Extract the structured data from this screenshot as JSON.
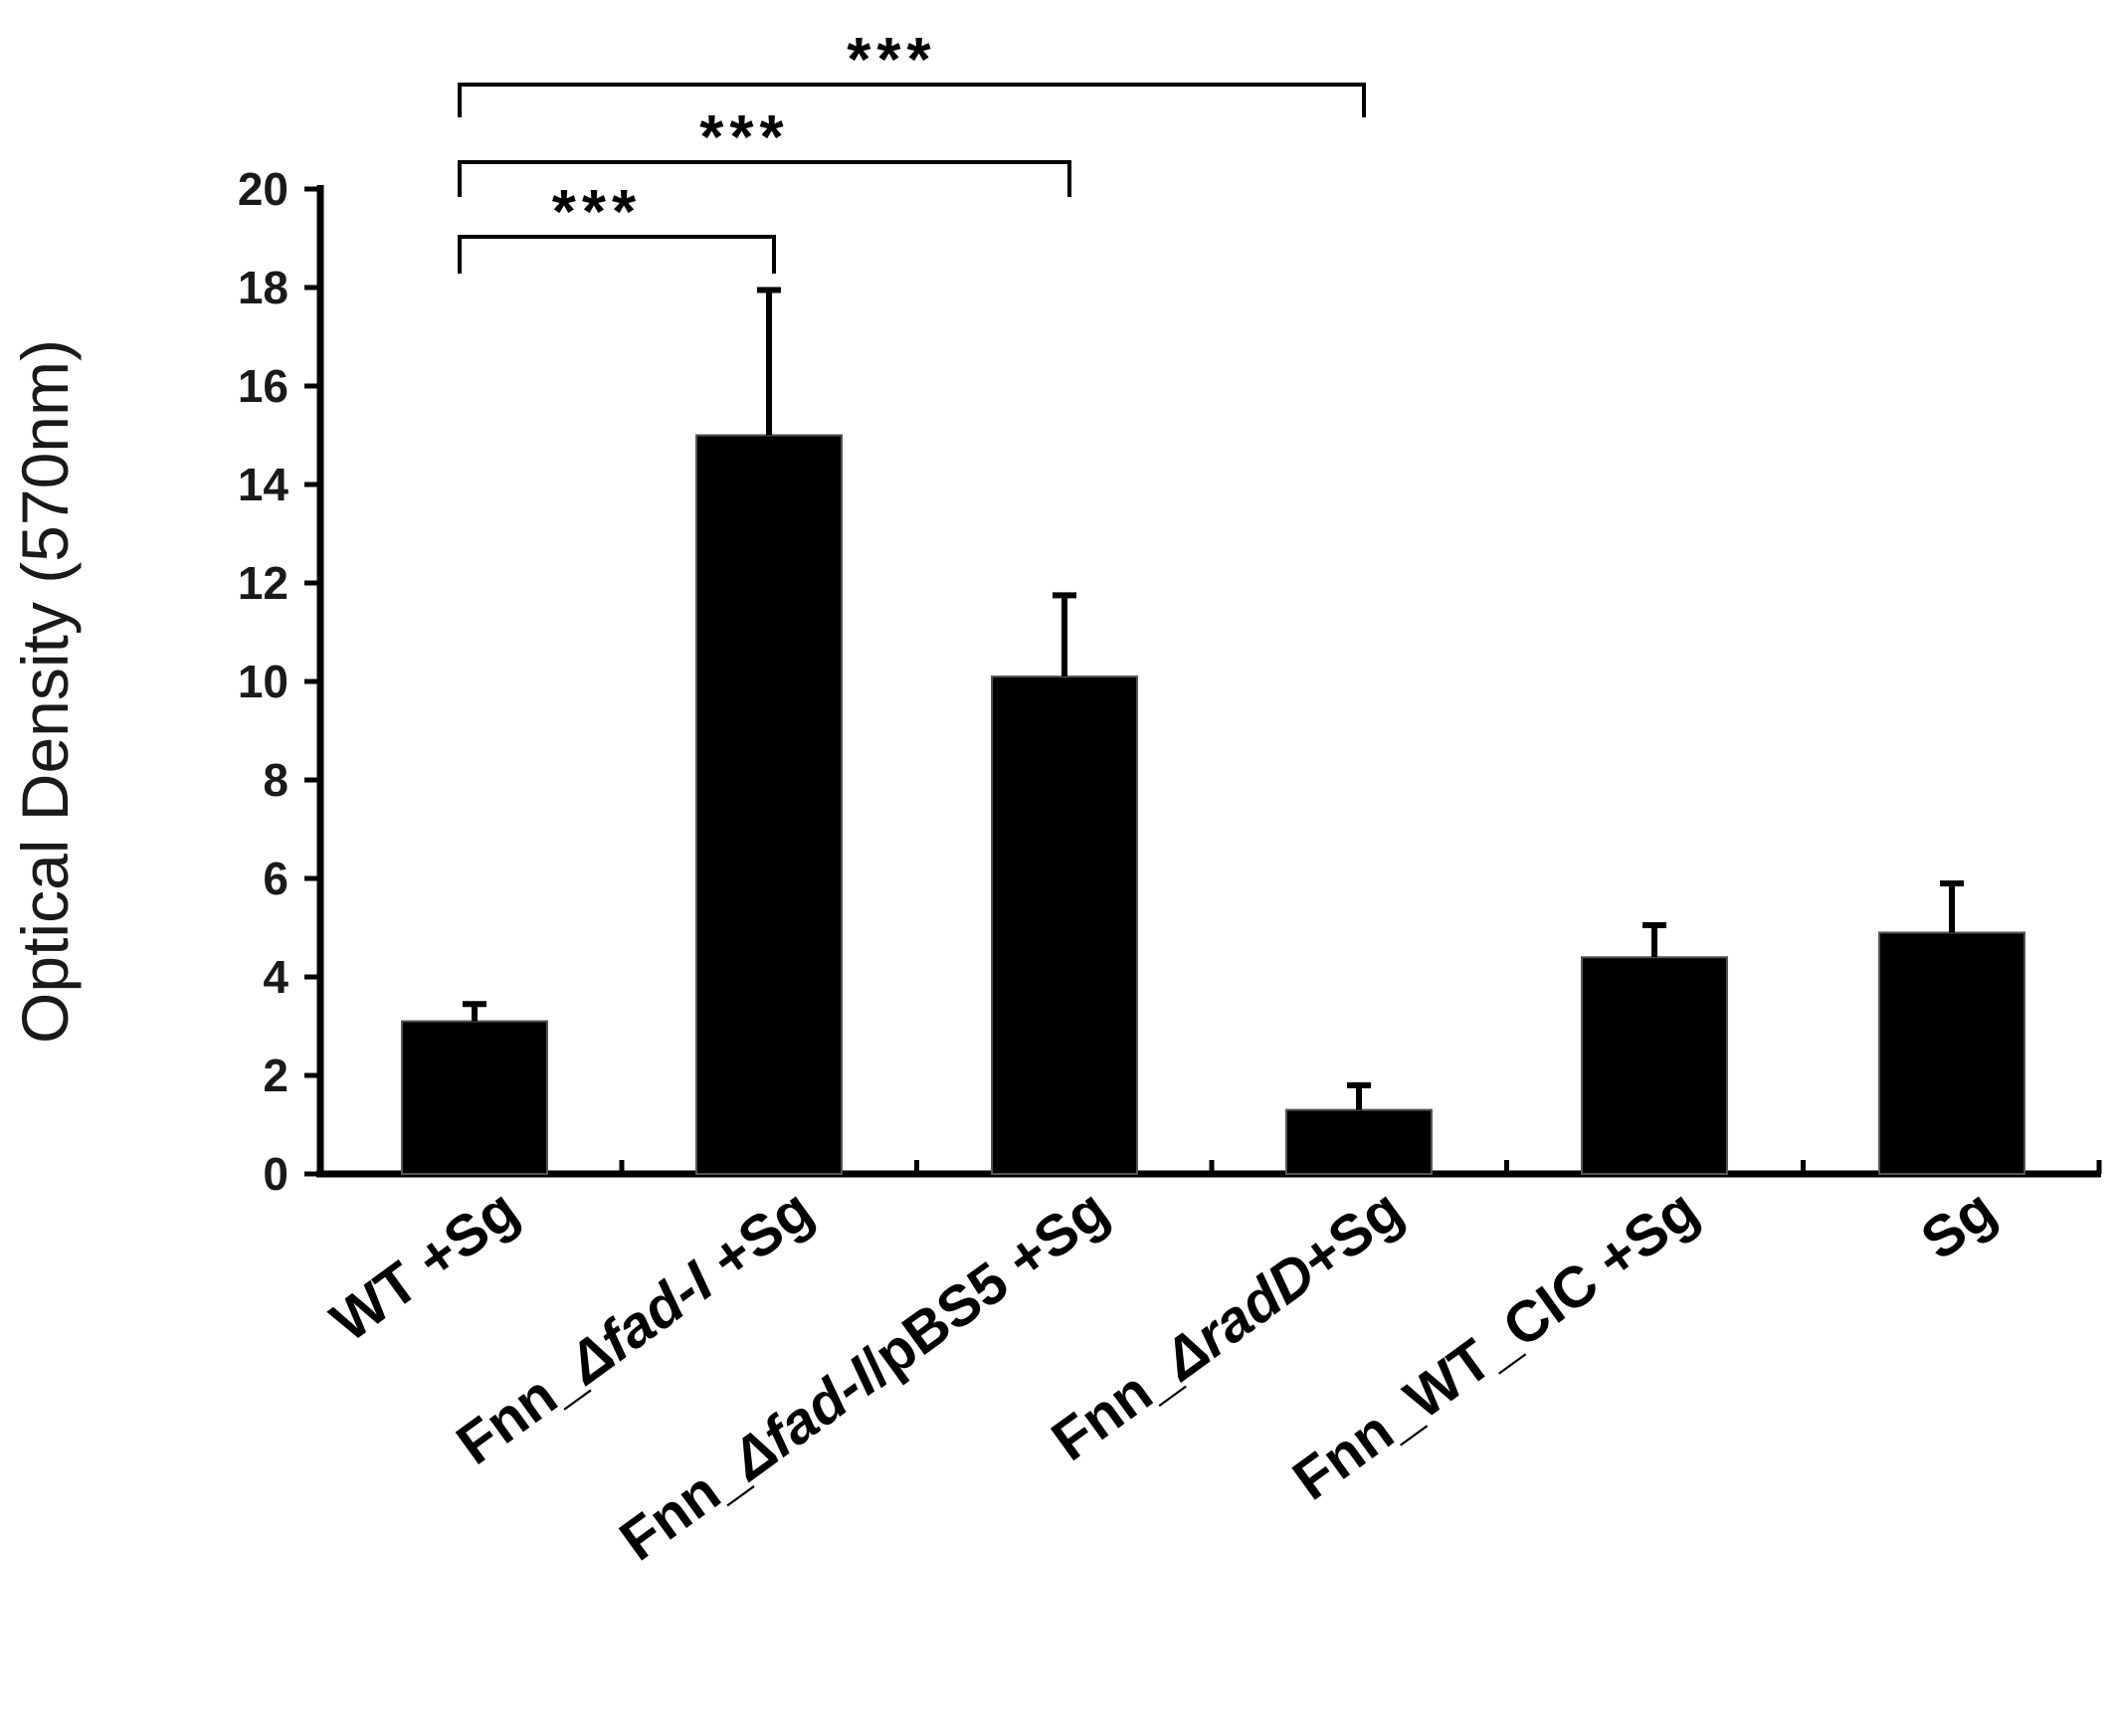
{
  "chart_data": {
    "type": "bar",
    "ylabel": "Optical Density (570nm)",
    "xlabel": "",
    "ylim": [
      0,
      20
    ],
    "yticks": [
      0,
      2,
      4,
      6,
      8,
      10,
      12,
      14,
      16,
      18,
      20
    ],
    "grid": false,
    "legend": "none",
    "categories": [
      {
        "text": "WT +Sg",
        "parts": [
          {
            "t": "WT +Sg",
            "i": false
          }
        ]
      },
      {
        "text": "Fnn_Δfad-I +Sg",
        "parts": [
          {
            "t": "Fnn_",
            "i": false
          },
          {
            "t": "Δfad-I",
            "i": true
          },
          {
            "t": " +Sg",
            "i": false
          }
        ]
      },
      {
        "text": "Fnn_Δfad-I/pBS5 +Sg",
        "parts": [
          {
            "t": "Fnn_",
            "i": false
          },
          {
            "t": "Δfad-I",
            "i": true
          },
          {
            "t": "/pBS5 +Sg",
            "i": false
          }
        ]
      },
      {
        "text": "Fnn_ΔradD+Sg",
        "parts": [
          {
            "t": "Fnn_",
            "i": false
          },
          {
            "t": "ΔradD",
            "i": true
          },
          {
            "t": "+Sg",
            "i": false
          }
        ]
      },
      {
        "text": "Fnn_WT_CIC +Sg",
        "parts": [
          {
            "t": "Fnn_WT_CIC +Sg",
            "i": false
          }
        ]
      },
      {
        "text": "Sg",
        "parts": [
          {
            "t": "Sg",
            "i": false
          }
        ]
      }
    ],
    "values": [
      3.1,
      15.0,
      10.1,
      1.3,
      4.4,
      4.9
    ],
    "errors": [
      0.35,
      2.95,
      1.65,
      0.5,
      0.65,
      1.0
    ],
    "bar_color": "#000000",
    "significance": [
      {
        "from": 0,
        "to": 1,
        "label": "***"
      },
      {
        "from": 0,
        "to": 2,
        "label": "***"
      },
      {
        "from": 0,
        "to": 3,
        "label": "***"
      }
    ]
  }
}
